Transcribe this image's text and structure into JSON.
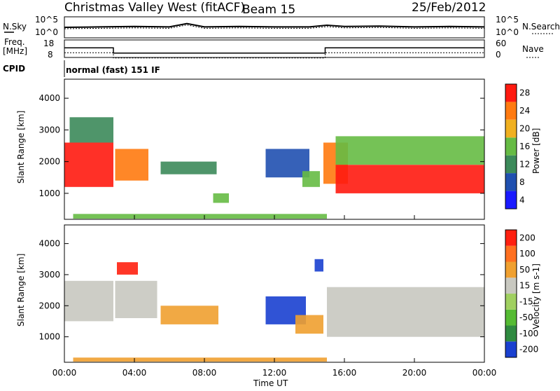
{
  "header": {
    "station": "Christmas Valley West (fitACF)",
    "beam": "Beam 15",
    "date": "25/Feb/2012",
    "nsky_label": "N.Sky",
    "nsearch_label": "N.Search",
    "freq_label": "Freq.",
    "freq_unit": "[MHz]",
    "nave_label": "Nave",
    "cpid_label": "CPID",
    "cpid_value": "normal (fast) 151 IF"
  },
  "noise_axis": {
    "ticks": [
      "10^5",
      "10^0"
    ]
  },
  "freq_axis": {
    "ticks": [
      "18",
      "8"
    ],
    "right_ticks": [
      "60",
      "0"
    ]
  },
  "range_axis": {
    "label": "Slant Range [km]",
    "ticks": [
      "1000",
      "2000",
      "3000",
      "4000"
    ]
  },
  "time_axis": {
    "label": "Time UT",
    "ticks": [
      "00:00",
      "04:00",
      "08:00",
      "12:00",
      "16:00",
      "20:00",
      "00:00"
    ]
  },
  "power_scale": {
    "label": "Power [dB]",
    "ticks": [
      "4",
      "8",
      "12",
      "16",
      "20",
      "24",
      "28"
    ],
    "colors": [
      "#1a1aff",
      "#2050b0",
      "#3c8a5a",
      "#66bb44",
      "#f0b020",
      "#ff7a10",
      "#ff1a10"
    ]
  },
  "velocity_scale": {
    "label": "Velocity [m s-1]",
    "ticks": [
      "200",
      "100",
      "50",
      "15",
      "-15",
      "-50",
      "-100",
      "-200"
    ],
    "colors": [
      "#1a40d0",
      "#2f8a40",
      "#55bb33",
      "#a0d060",
      "#c8c8c0",
      "#f0a030",
      "#ff7020",
      "#ff2010"
    ]
  },
  "chart_data": [
    {
      "type": "line",
      "panel": "noise",
      "x_unit": "hours UT",
      "xlim": [
        0,
        24
      ],
      "series": [
        {
          "x": [
            0,
            2,
            4,
            6,
            7,
            8,
            10,
            12,
            14,
            15,
            16,
            18,
            20,
            22,
            24
          ],
          "y": [
            2.5,
            2.6,
            2.7,
            2.6,
            3.4,
            2.6,
            2.7,
            2.6,
            2.6,
            3.0,
            2.7,
            2.8,
            2.6,
            2.7,
            2.6
          ]
        }
      ]
    },
    {
      "type": "line",
      "panel": "frequency",
      "x_unit": "hours UT",
      "ylim": [
        8,
        18
      ],
      "series": [
        {
          "x": [
            0,
            2.8,
            2.8,
            14.9,
            14.9,
            24
          ],
          "y": [
            13.5,
            13.5,
            10.5,
            10.5,
            13.5,
            13.5
          ]
        }
      ]
    },
    {
      "type": "heatmap",
      "panel": "power",
      "x_unit": "hours UT",
      "y_unit": "km",
      "xlim": [
        0,
        24
      ],
      "ylim": [
        180,
        4600
      ],
      "regions": [
        {
          "t0": 0.0,
          "t1": 2.8,
          "r0": 1200,
          "r1": 2600,
          "level": 6
        },
        {
          "t0": 0.3,
          "t1": 2.8,
          "r0": 2600,
          "r1": 3400,
          "level": 2
        },
        {
          "t0": 2.9,
          "t1": 4.8,
          "r0": 1400,
          "r1": 2400,
          "level": 5
        },
        {
          "t0": 5.5,
          "t1": 8.7,
          "r0": 1600,
          "r1": 2000,
          "level": 2
        },
        {
          "t0": 8.5,
          "t1": 9.4,
          "r0": 700,
          "r1": 1000,
          "level": 3
        },
        {
          "t0": 11.5,
          "t1": 14.0,
          "r0": 1500,
          "r1": 2400,
          "level": 1
        },
        {
          "t0": 13.6,
          "t1": 14.6,
          "r0": 1200,
          "r1": 1700,
          "level": 3
        },
        {
          "t0": 14.8,
          "t1": 16.2,
          "r0": 1300,
          "r1": 2600,
          "level": 5
        },
        {
          "t0": 15.5,
          "t1": 24.0,
          "r0": 1000,
          "r1": 1900,
          "level": 6
        },
        {
          "t0": 15.5,
          "t1": 24.0,
          "r0": 1900,
          "r1": 2800,
          "level": 3
        },
        {
          "t0": 0.5,
          "t1": 15.0,
          "r0": 200,
          "r1": 350,
          "level": 3
        }
      ]
    },
    {
      "type": "heatmap",
      "panel": "velocity",
      "x_unit": "hours UT",
      "y_unit": "km",
      "xlim": [
        0,
        24
      ],
      "ylim": [
        180,
        4600
      ],
      "regions": [
        {
          "t0": 0.0,
          "t1": 2.8,
          "r0": 1500,
          "r1": 2800,
          "level": 4
        },
        {
          "t0": 2.9,
          "t1": 5.3,
          "r0": 1600,
          "r1": 2800,
          "level": 4
        },
        {
          "t0": 3.0,
          "t1": 4.2,
          "r0": 3000,
          "r1": 3400,
          "level": 7
        },
        {
          "t0": 5.5,
          "t1": 8.8,
          "r0": 1400,
          "r1": 2000,
          "level": 5
        },
        {
          "t0": 11.5,
          "t1": 13.8,
          "r0": 1400,
          "r1": 2300,
          "level": 0
        },
        {
          "t0": 13.2,
          "t1": 14.8,
          "r0": 1100,
          "r1": 1700,
          "level": 5
        },
        {
          "t0": 14.3,
          "t1": 14.8,
          "r0": 3100,
          "r1": 3500,
          "level": 0
        },
        {
          "t0": 15.0,
          "t1": 24.0,
          "r0": 1000,
          "r1": 2600,
          "level": 4
        },
        {
          "t0": 0.5,
          "t1": 15.0,
          "r0": 200,
          "r1": 330,
          "level": 5
        }
      ]
    }
  ]
}
